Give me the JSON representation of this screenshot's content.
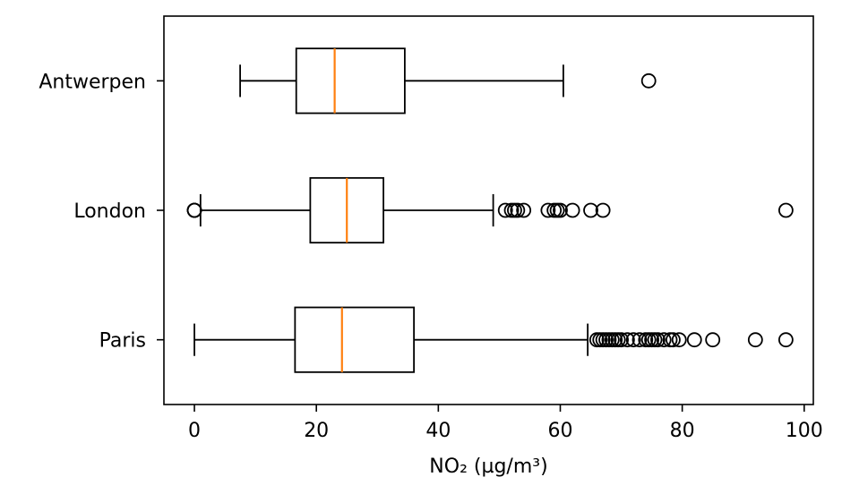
{
  "chart_data": {
    "type": "boxplot",
    "orientation": "horizontal",
    "xlabel": "NO₂ (µg/m³)",
    "ylabel": "",
    "title": "",
    "xlim": [
      -5,
      101.5
    ],
    "xticks": [
      0,
      20,
      40,
      60,
      80,
      100
    ],
    "grid": false,
    "colors": {
      "box": "#000000",
      "median": "#ff7f0e",
      "flier": "#000000"
    },
    "categories": [
      "Antwerpen",
      "London",
      "Paris"
    ],
    "series": [
      {
        "category": "Antwerpen",
        "whisker_low": 7.5,
        "q1": 16.7,
        "median": 23.0,
        "q3": 34.5,
        "whisker_high": 60.5,
        "fliers": [
          74.5
        ]
      },
      {
        "category": "London",
        "whisker_low": 1.0,
        "q1": 19.0,
        "median": 25.0,
        "q3": 31.0,
        "whisker_high": 49.0,
        "fliers": [
          0,
          0,
          0,
          51,
          52,
          52.5,
          53,
          54,
          58,
          59,
          59.5,
          60,
          62,
          65,
          67,
          97
        ]
      },
      {
        "category": "Paris",
        "whisker_low": 0.0,
        "q1": 16.5,
        "median": 24.2,
        "q3": 36.0,
        "whisker_high": 64.5,
        "fliers": [
          66,
          66.5,
          67,
          67.5,
          68,
          68.5,
          69,
          69.5,
          70,
          71,
          72,
          73,
          74,
          74.5,
          75,
          75.5,
          76,
          77,
          78,
          78.5,
          79.5,
          82,
          85,
          92,
          97
        ]
      }
    ]
  }
}
